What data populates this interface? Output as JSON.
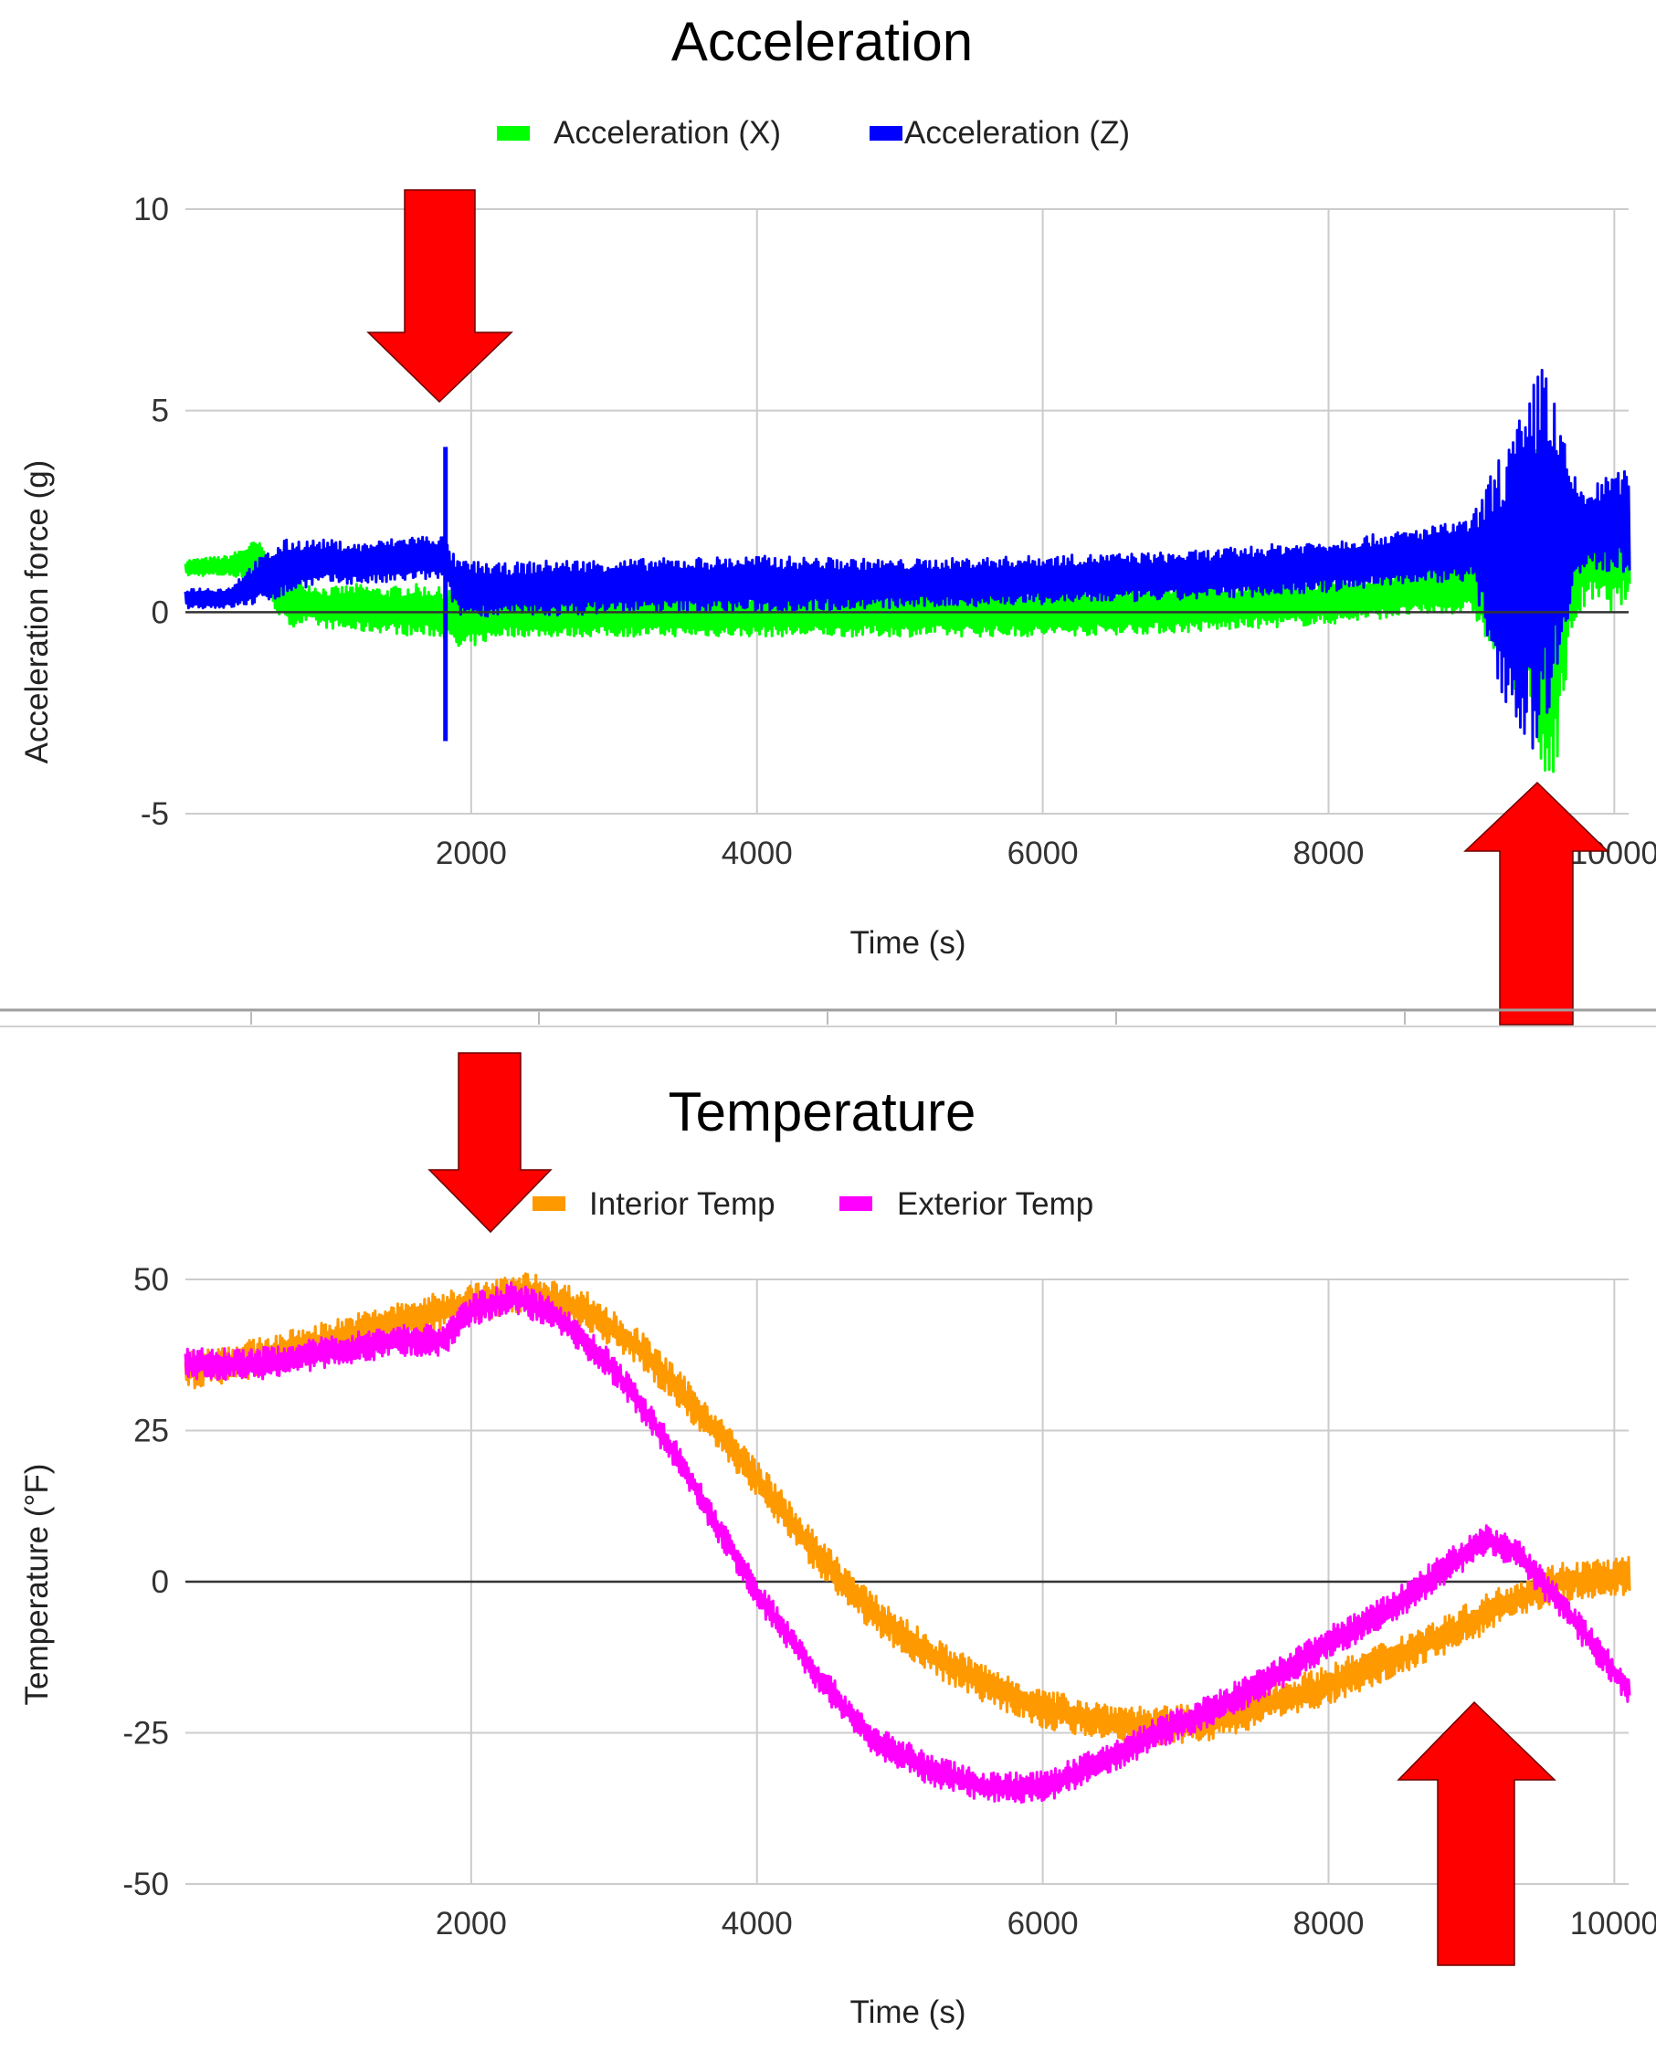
{
  "chart_data": [
    {
      "type": "line",
      "title": "Acceleration",
      "xlabel": "Time (s)",
      "ylabel": "Acceleration force (g)",
      "xlim": [
        0,
        10100
      ],
      "ylim": [
        -5,
        10
      ],
      "x_ticks": [
        2000,
        4000,
        6000,
        8000,
        10000
      ],
      "x_tick_labels": [
        "2000",
        "4000",
        "6000",
        "8000",
        "10000"
      ],
      "y_ticks": [
        -5,
        0,
        5,
        10
      ],
      "y_tick_labels": [
        "-5",
        "0",
        "5",
        "10"
      ],
      "grid": true,
      "legend_position": "top-center",
      "series": [
        {
          "name": "Acceleration (X)",
          "color": "#00ff00",
          "x": [
            0,
            300,
            500,
            700,
            800,
            1000,
            1200,
            1400,
            1600,
            1800,
            1900,
            2200,
            2600,
            3000,
            4000,
            5000,
            6000,
            7000,
            8000,
            8500,
            9000,
            9200,
            9400,
            9500,
            9600,
            9700,
            9800,
            10000,
            10100
          ],
          "y_min": [
            0.9,
            0.9,
            0.8,
            -0.4,
            -0.3,
            -0.4,
            -0.5,
            -0.5,
            -0.6,
            -0.6,
            -1.0,
            -0.6,
            -0.6,
            -0.6,
            -0.6,
            -0.6,
            -0.6,
            -0.5,
            -0.3,
            -0.1,
            0.0,
            -1.5,
            -2.5,
            -5.0,
            -3.5,
            -0.5,
            0.2,
            0.0,
            0.3
          ],
          "y_max": [
            1.3,
            1.4,
            1.8,
            1.0,
            0.8,
            0.6,
            0.7,
            0.6,
            0.7,
            0.6,
            0.6,
            0.5,
            0.4,
            0.5,
            0.5,
            0.6,
            0.6,
            0.7,
            0.8,
            1.0,
            1.3,
            2.5,
            3.5,
            4.5,
            3.0,
            2.8,
            2.8,
            2.8,
            2.8
          ]
        },
        {
          "name": "Acceleration (Z)",
          "color": "#0000ff",
          "x": [
            0,
            300,
            500,
            700,
            800,
            1000,
            1200,
            1400,
            1600,
            1800,
            1900,
            2200,
            2600,
            3000,
            4000,
            5000,
            6000,
            7000,
            8000,
            8500,
            9000,
            9200,
            9400,
            9500,
            9600,
            9700,
            9800,
            10000,
            10100
          ],
          "y_min": [
            0.1,
            0.1,
            0.2,
            0.4,
            0.6,
            0.7,
            0.7,
            0.7,
            0.8,
            0.8,
            -0.1,
            -0.1,
            -0.1,
            0.0,
            0.0,
            0.1,
            0.2,
            0.3,
            0.5,
            0.7,
            0.8,
            -2.0,
            -3.5,
            -3.0,
            -1.5,
            0.5,
            1.0,
            1.0,
            1.0
          ],
          "y_max": [
            0.6,
            0.6,
            1.3,
            1.8,
            1.8,
            1.8,
            1.7,
            1.8,
            1.9,
            1.9,
            1.3,
            1.2,
            1.3,
            1.3,
            1.4,
            1.3,
            1.4,
            1.5,
            1.8,
            2.0,
            2.3,
            4.0,
            5.2,
            6.8,
            5.0,
            3.5,
            3.0,
            3.5,
            3.5
          ]
        }
      ],
      "spikes": [
        {
          "series": "Acceleration (Z)",
          "x": 1820,
          "y_min": -3.2,
          "y_max": 4.1
        }
      ],
      "annotations": [
        {
          "shape": "arrow-down",
          "color": "#ff0000",
          "points_to_x": 1820
        },
        {
          "shape": "arrow-up",
          "color": "#ff0000",
          "points_to_x": 9450
        }
      ]
    },
    {
      "type": "line",
      "title": "Temperature",
      "xlabel": "Time (s)",
      "ylabel": "Temperature (°F)",
      "xlim": [
        0,
        10100
      ],
      "ylim": [
        -50,
        50
      ],
      "x_ticks": [
        2000,
        4000,
        6000,
        8000,
        10000
      ],
      "x_tick_labels": [
        "2000",
        "4000",
        "6000",
        "8000",
        "10000"
      ],
      "y_ticks": [
        -50,
        -25,
        0,
        25,
        50
      ],
      "y_tick_labels": [
        "-50",
        "-25",
        "0",
        "25",
        "50"
      ],
      "grid": true,
      "legend_position": "top-center",
      "series": [
        {
          "name": "Interior Temp",
          "color": "#ff9900",
          "x": [
            0,
            500,
            1000,
            1500,
            2000,
            2400,
            2800,
            3200,
            3600,
            4000,
            4400,
            4800,
            5200,
            5600,
            6000,
            6400,
            6800,
            7200,
            7600,
            8000,
            8400,
            8800,
            9200,
            9600,
            10100
          ],
          "y": [
            35,
            37,
            40,
            43,
            46,
            48,
            45,
            38,
            28,
            17,
            5,
            -5,
            -12,
            -17,
            -21,
            -23,
            -24,
            -23,
            -20,
            -17,
            -13,
            -9,
            -4,
            0,
            1
          ]
        },
        {
          "name": "Exterior Temp",
          "color": "#ff00ff",
          "x": [
            0,
            500,
            1000,
            1500,
            1800,
            2000,
            2300,
            2600,
            3000,
            3400,
            3700,
            4000,
            4400,
            4800,
            5200,
            5600,
            6000,
            6400,
            6800,
            7200,
            7600,
            8000,
            8400,
            8800,
            9100,
            9300,
            9600,
            10100
          ],
          "y": [
            36,
            36,
            38,
            40,
            40,
            45,
            47,
            44,
            35,
            22,
            10,
            -2,
            -15,
            -26,
            -31,
            -34,
            -34,
            -30,
            -25,
            -21,
            -16,
            -10,
            -5,
            2,
            7,
            5,
            -3,
            -18
          ]
        }
      ],
      "annotations": [
        {
          "shape": "arrow-down",
          "color": "#ff0000",
          "points_to_x": 2100
        },
        {
          "shape": "arrow-up",
          "color": "#ff0000",
          "points_to_x": 9050
        }
      ]
    }
  ]
}
